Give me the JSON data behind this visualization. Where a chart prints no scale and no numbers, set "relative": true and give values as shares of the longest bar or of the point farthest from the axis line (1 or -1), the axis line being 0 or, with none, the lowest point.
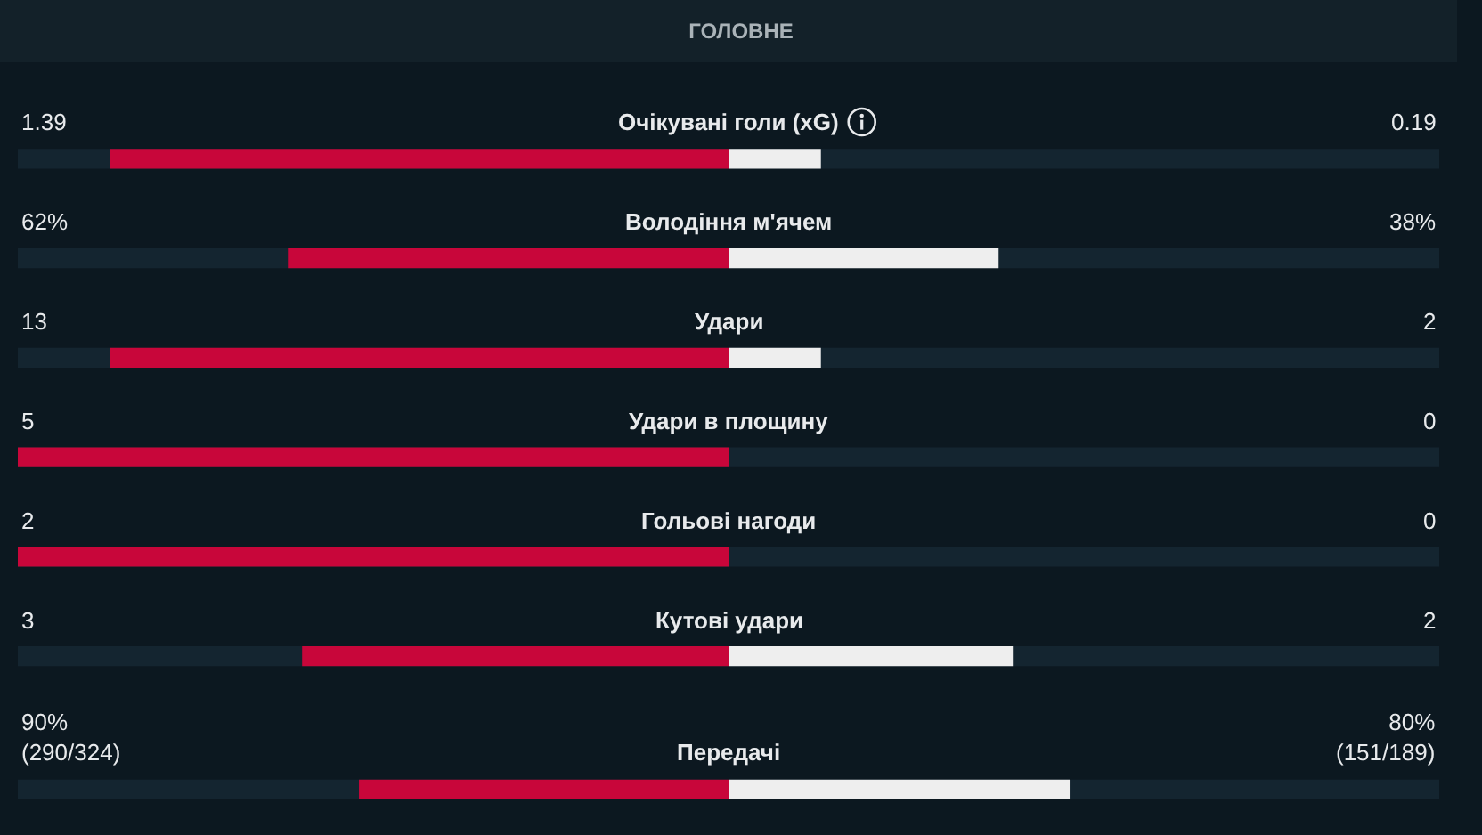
{
  "chart_data": {
    "type": "bar",
    "orientation": "horizontal",
    "relative": true,
    "stacked": true,
    "title": "ГОЛОВНЕ",
    "categories": [
      "Очікувані голи (xG)",
      "Володіння м'ячем",
      "Удари",
      "Удари в площину",
      "Гольові нагоди",
      "Кутові удари",
      "Передачі"
    ],
    "series": [
      {
        "color": "#c8063a",
        "values": [
          -0.87,
          -0.62,
          -0.87,
          -1,
          -1,
          -0.6,
          -0.52
        ]
      },
      {
        "color": "#eeeeee",
        "values": [
          0.13,
          0.38,
          0.13,
          0,
          0,
          0.4,
          0.48
        ]
      }
    ],
    "annotations": [
      "1.39",
      "0.19",
      "62%",
      "38%",
      "13",
      "2",
      "5",
      "0",
      "2",
      "0",
      "3",
      "2",
      "90%\n(290/324)",
      "80%\n(151/189)"
    ]
  }
}
